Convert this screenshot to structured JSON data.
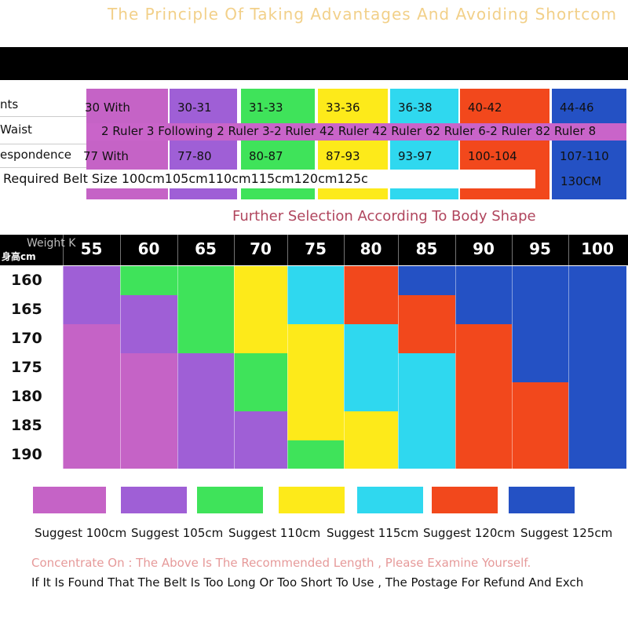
{
  "colors": {
    "pink": "#c563c6",
    "violet": "#9f5fd6",
    "green": "#3fe35a",
    "yellow": "#fdea1a",
    "cyan": "#2fd8ef",
    "red": "#f2481c",
    "blue": "#2451c4"
  },
  "banner": {
    "title": "The  Principle  Of  Taking  Advantages  And  Avoiding  Shortcom"
  },
  "top_table": {
    "row_labels": [
      "nts",
      " Waist",
      "espondence"
    ],
    "pants_row": [
      "30 With",
      "30-31",
      "31-33",
      "33-36",
      "36-38",
      "40-42",
      "44-46"
    ],
    "waist_row": "2 Ruler 3 Following 2 Ruler 3-2 Ruler 42 Ruler 42 Ruler 62 Ruler 6-2 Ruler 82 Ruler 8",
    "corr_row": [
      "77 With",
      "77-80",
      "80-87",
      "87-93",
      "93-97",
      "100-104",
      "107-110"
    ],
    "belt_row": "Required Belt Size 100cm105cm110cm115cm120cm125c",
    "belt_last": "130CM"
  },
  "subtitle": "Further Selection According To Body Shape",
  "grid": {
    "corner_weight": "Weight K",
    "corner_height": "身高cm",
    "weights": [
      "55",
      "60",
      "65",
      "70",
      "75",
      "80",
      "85",
      "90",
      "95",
      "100"
    ],
    "heights": [
      "160",
      "165",
      "170",
      "175",
      "180",
      "185",
      "190"
    ]
  },
  "legend": {
    "items": [
      {
        "label": "Suggest 100cm",
        "color": "pink"
      },
      {
        "label": "Suggest 105cm",
        "color": "violet"
      },
      {
        "label": "Suggest 110cm",
        "color": "green"
      },
      {
        "label": "Suggest 115cm",
        "color": "yellow"
      },
      {
        "label": "Suggest 120cm",
        "color": "cyan"
      },
      {
        "label": "Suggest 125cm",
        "color": "red"
      },
      {
        "label": "",
        "color": "blue"
      }
    ]
  },
  "notes": {
    "line1": "Concentrate On : The Above Is The Recommended Length , Please Examine Yourself.",
    "line2": "If It Is Found That The Belt Is Too Long Or Too Short To Use , The Postage For Refund And Exch"
  }
}
